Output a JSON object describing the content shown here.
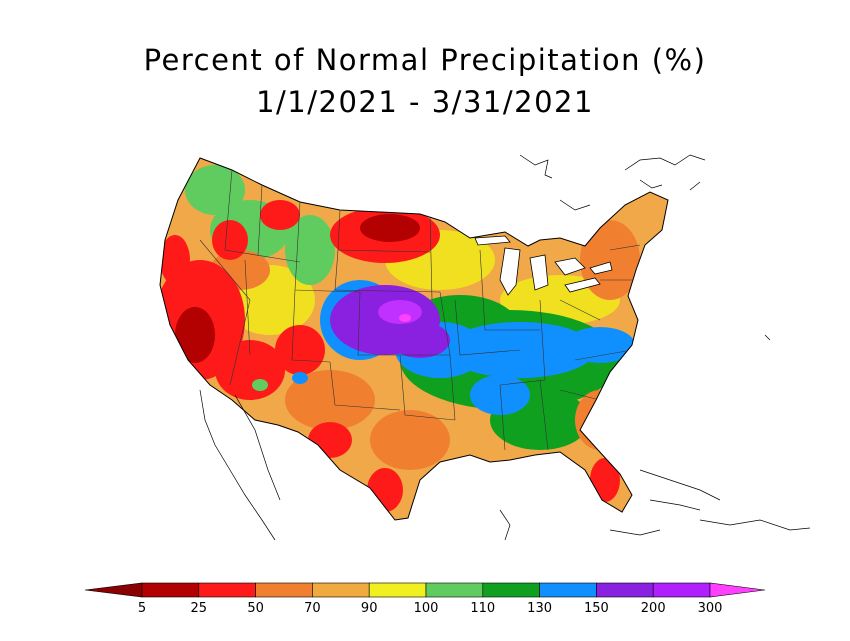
{
  "title": {
    "line1": "Percent of Normal Precipitation (%)",
    "line2": "1/1/2021 - 3/31/2021"
  },
  "map": {
    "region": "Contiguous United States",
    "regions_by_percent_of_normal": [
      {
        "area": "California / Nevada / Arizona",
        "class": "25-50"
      },
      {
        "area": "Northern Plains (Montana, North Dakota)",
        "class": "25-50"
      },
      {
        "area": "Nebraska / South Dakota / Iowa / Kansas",
        "class": "150-200"
      },
      {
        "area": "Tennessee Valley / Ohio Valley",
        "class": "130-150"
      },
      {
        "area": "Texas / Southern Plains",
        "class": "50-70"
      },
      {
        "area": "Florida",
        "class": "25-50"
      },
      {
        "area": "Northeast / New England",
        "class": "70-90"
      },
      {
        "area": "Mississippi / Alabama",
        "class": "110-130"
      }
    ]
  },
  "legend": {
    "ticks": [
      "5",
      "25",
      "50",
      "70",
      "90",
      "100",
      "110",
      "130",
      "150",
      "200",
      "300"
    ],
    "under_color": "#8b0000",
    "over_color": "#ff40ff",
    "colors": [
      "#b30000",
      "#ff1a1a",
      "#f08030",
      "#f0aa40",
      "#f0f020",
      "#60cc60",
      "#10a020",
      "#1090ff",
      "#8a20e0",
      "#b020ff"
    ]
  },
  "colors": {
    "state_border": "#333333",
    "coastline": "#000000"
  }
}
